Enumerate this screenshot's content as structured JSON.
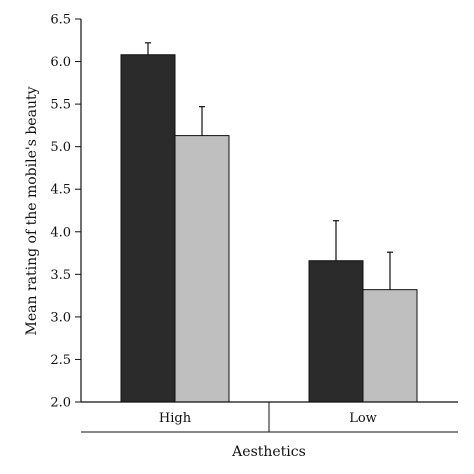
{
  "chart_data": {
    "type": "bar",
    "title": "",
    "xlabel": "Aesthetics",
    "ylabel": "Mean rating of the mobile's beauty",
    "categories": [
      "High",
      "Low"
    ],
    "ylim": [
      2.0,
      6.5
    ],
    "yticks": [
      "2.0",
      "2.5",
      "3.0",
      "3.5",
      "4.0",
      "4.5",
      "5.0",
      "5.5",
      "6.0",
      "6.5"
    ],
    "grid": false,
    "legend": "none",
    "series": [
      {
        "values": [
          6.08,
          3.66
        ],
        "errors": [
          0.14,
          0.47
        ],
        "color": "#2b2b2b"
      },
      {
        "values": [
          5.13,
          3.32
        ],
        "errors": [
          0.34,
          0.44
        ],
        "color": "#bfbfbf"
      }
    ]
  }
}
